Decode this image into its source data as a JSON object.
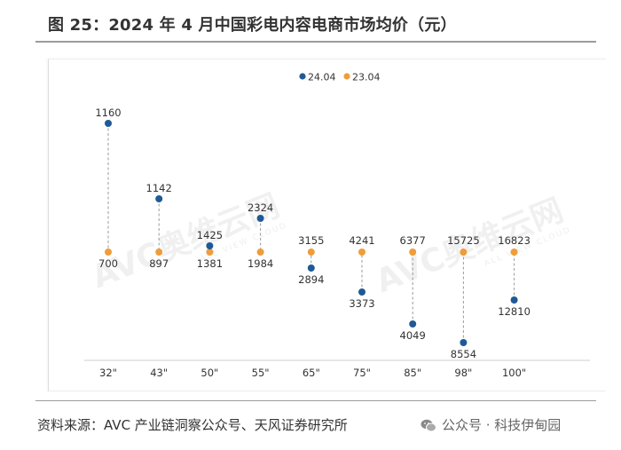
{
  "header": {
    "title": "图 25：2024 年 4 月中国彩电内容电商市场均价（元）"
  },
  "watermark": {
    "brand": "AVC奥维云网",
    "tagline": "ALL VIEW CLOUD"
  },
  "footer": {
    "source": "资料来源：AVC 产业链洞察公众号、天风证券研究所",
    "wechat_label": "公众号 · 科技伊甸园"
  },
  "colors": {
    "series_2404": "#1f5a97",
    "series_2304": "#ee9d3b",
    "dash": "#9a9a9a",
    "axis": "#cccccc"
  },
  "chart_data": {
    "type": "dot-plot",
    "title": "",
    "legend_position": "top-center",
    "categories": [
      "32\"",
      "43\"",
      "50\"",
      "55\"",
      "65\"",
      "75\"",
      "85\"",
      "98\"",
      "100\""
    ],
    "series": [
      {
        "name": "24.04",
        "values": [
          1160,
          1142,
          1425,
          2324,
          2894,
          3373,
          4049,
          8554,
          12810
        ]
      },
      {
        "name": "23.04",
        "values": [
          700,
          897,
          1381,
          1984,
          3155,
          4241,
          6377,
          15725,
          16823
        ]
      }
    ],
    "grid": false,
    "y_axis_shown": false
  }
}
